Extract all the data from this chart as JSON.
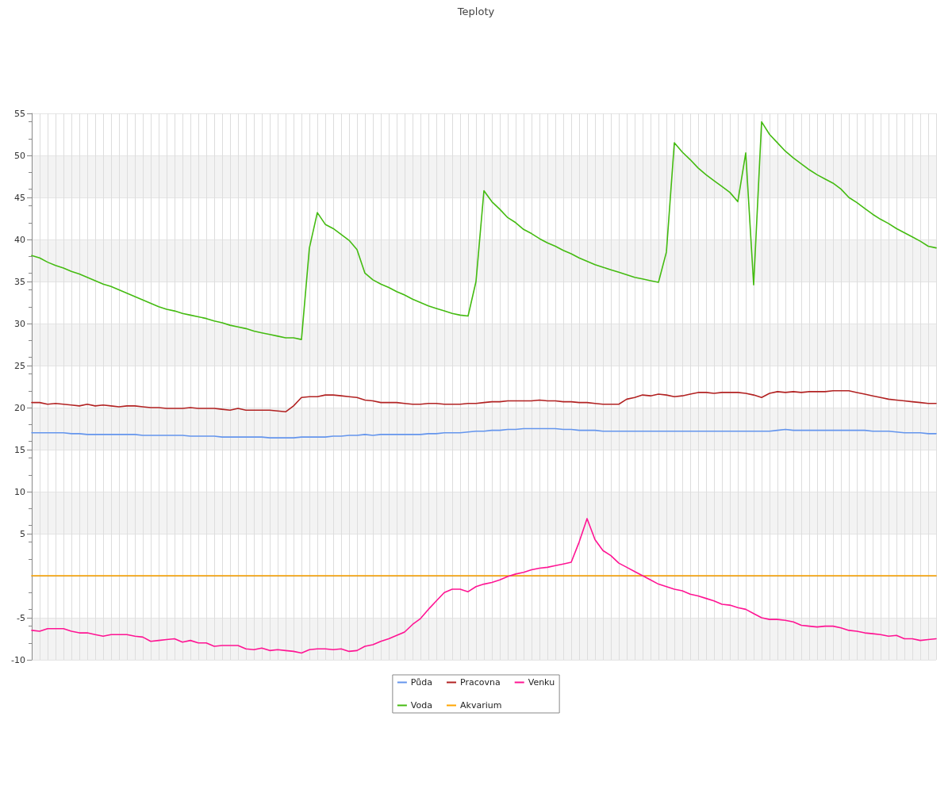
{
  "chart_data": {
    "type": "line",
    "title": "Teploty",
    "categories": [
      null,
      null,
      null,
      null,
      null,
      null,
      null,
      null,
      null,
      null,
      null,
      null,
      null,
      null,
      null,
      null,
      null,
      null,
      null,
      null,
      null,
      null,
      null,
      null,
      null,
      null,
      null,
      null,
      null,
      null,
      null,
      null,
      null,
      null,
      null,
      null,
      null,
      null,
      null,
      null,
      null,
      null,
      null,
      null,
      null,
      null,
      null,
      null,
      null,
      null,
      null,
      null,
      null,
      null,
      null,
      null,
      null,
      null,
      null,
      null,
      null,
      null,
      null,
      null,
      null,
      null,
      null,
      null,
      null,
      null,
      null,
      null,
      null,
      null,
      null,
      null,
      null,
      null,
      null,
      null,
      null,
      null,
      null,
      null,
      null,
      null,
      null,
      null,
      null,
      null,
      null,
      null,
      null,
      null,
      null,
      null,
      null,
      null,
      null,
      null,
      null,
      null,
      null,
      null,
      null,
      null,
      null,
      null,
      null,
      null,
      null,
      null,
      null,
      null,
      null
    ],
    "series": [
      {
        "name": "Půda",
        "color": "#6495ed",
        "values": [
          17.0,
          17.0,
          17.0,
          17.0,
          17.0,
          16.9,
          16.9,
          16.8,
          16.8,
          16.8,
          16.8,
          16.8,
          16.8,
          16.8,
          16.7,
          16.7,
          16.7,
          16.7,
          16.7,
          16.7,
          16.6,
          16.6,
          16.6,
          16.6,
          16.5,
          16.5,
          16.5,
          16.5,
          16.5,
          16.5,
          16.4,
          16.4,
          16.4,
          16.4,
          16.5,
          16.5,
          16.5,
          16.5,
          16.6,
          16.6,
          16.7,
          16.7,
          16.8,
          16.7,
          16.8,
          16.8,
          16.8,
          16.8,
          16.8,
          16.8,
          16.9,
          16.9,
          17.0,
          17.0,
          17.0,
          17.1,
          17.2,
          17.2,
          17.3,
          17.3,
          17.4,
          17.4,
          17.5,
          17.5,
          17.5,
          17.5,
          17.5,
          17.4,
          17.4,
          17.3,
          17.3,
          17.3,
          17.2,
          17.2,
          17.2,
          17.2,
          17.2,
          17.2,
          17.2,
          17.2,
          17.2,
          17.2,
          17.2,
          17.2,
          17.2,
          17.2,
          17.2,
          17.2,
          17.2,
          17.2,
          17.2,
          17.2,
          17.2,
          17.2,
          17.3,
          17.4,
          17.3,
          17.3,
          17.3,
          17.3,
          17.3,
          17.3,
          17.3,
          17.3,
          17.3,
          17.3,
          17.2,
          17.2,
          17.2,
          17.1,
          17.0,
          17.0,
          17.0,
          16.9,
          16.9
        ]
      },
      {
        "name": "Voda",
        "color": "#44bb11",
        "values": [
          38.1,
          37.8,
          37.3,
          36.9,
          36.6,
          36.2,
          35.9,
          35.5,
          35.1,
          34.7,
          34.4,
          34.0,
          33.6,
          33.2,
          32.8,
          32.4,
          32.0,
          31.7,
          31.5,
          31.2,
          31.0,
          30.8,
          30.6,
          30.3,
          30.1,
          29.8,
          29.6,
          29.4,
          29.1,
          28.9,
          28.7,
          28.5,
          28.3,
          28.3,
          28.1,
          39.0,
          43.2,
          41.8,
          41.3,
          40.6,
          39.9,
          38.8,
          36.0,
          35.2,
          34.7,
          34.3,
          33.8,
          33.4,
          32.9,
          32.5,
          32.1,
          31.8,
          31.5,
          31.2,
          31.0,
          30.9,
          35.0,
          45.8,
          44.5,
          43.6,
          42.6,
          42.0,
          41.2,
          40.7,
          40.1,
          39.6,
          39.2,
          38.7,
          38.3,
          37.8,
          37.4,
          37.0,
          36.7,
          36.4,
          36.1,
          35.8,
          35.5,
          35.3,
          35.1,
          34.9,
          38.5,
          51.5,
          50.4,
          49.5,
          48.5,
          47.7,
          47.0,
          46.3,
          45.6,
          44.5,
          50.3,
          34.6,
          54.0,
          52.5,
          51.5,
          50.5,
          49.7,
          49.0,
          48.3,
          47.7,
          47.2,
          46.7,
          46.0,
          45.0,
          44.4,
          43.7,
          43.0,
          42.4,
          41.9,
          41.3,
          40.8,
          40.3,
          39.8,
          39.2,
          39.0
        ]
      },
      {
        "name": "Pracovna",
        "color": "#b22222",
        "values": [
          20.6,
          20.6,
          20.4,
          20.5,
          20.4,
          20.3,
          20.2,
          20.4,
          20.2,
          20.3,
          20.2,
          20.1,
          20.2,
          20.2,
          20.1,
          20.0,
          20.0,
          19.9,
          19.9,
          19.9,
          20.0,
          19.9,
          19.9,
          19.9,
          19.8,
          19.7,
          19.9,
          19.7,
          19.7,
          19.7,
          19.7,
          19.6,
          19.5,
          20.2,
          21.2,
          21.3,
          21.3,
          21.5,
          21.5,
          21.4,
          21.3,
          21.2,
          20.9,
          20.8,
          20.6,
          20.6,
          20.6,
          20.5,
          20.4,
          20.4,
          20.5,
          20.5,
          20.4,
          20.4,
          20.4,
          20.5,
          20.5,
          20.6,
          20.7,
          20.7,
          20.8,
          20.8,
          20.8,
          20.8,
          20.9,
          20.8,
          20.8,
          20.7,
          20.7,
          20.6,
          20.6,
          20.5,
          20.4,
          20.4,
          20.4,
          21.0,
          21.2,
          21.5,
          21.4,
          21.6,
          21.5,
          21.3,
          21.4,
          21.6,
          21.8,
          21.8,
          21.7,
          21.8,
          21.8,
          21.8,
          21.7,
          21.5,
          21.2,
          21.7,
          21.9,
          21.8,
          21.9,
          21.8,
          21.9,
          21.9,
          21.9,
          22.0,
          22.0,
          22.0,
          21.8,
          21.6,
          21.4,
          21.2,
          21.0,
          20.9,
          20.8,
          20.7,
          20.6,
          20.5,
          20.5
        ]
      },
      {
        "name": "Akvarium",
        "color": "#ffa500",
        "values": [
          0,
          0,
          0,
          0,
          0,
          0,
          0,
          0,
          0,
          0,
          0,
          0,
          0,
          0,
          0,
          0,
          0,
          0,
          0,
          0,
          0,
          0,
          0,
          0,
          0,
          0,
          0,
          0,
          0,
          0,
          0,
          0,
          0,
          0,
          0,
          0,
          0,
          0,
          0,
          0,
          0,
          0,
          0,
          0,
          0,
          0,
          0,
          0,
          0,
          0,
          0,
          0,
          0,
          0,
          0,
          0,
          0,
          0,
          0,
          0,
          0,
          0,
          0,
          0,
          0,
          0,
          0,
          0,
          0,
          0,
          0,
          0,
          0,
          0,
          0,
          0,
          0,
          0,
          0,
          0,
          0,
          0,
          0,
          0,
          0,
          0,
          0,
          0,
          0,
          0,
          0,
          0,
          0,
          0,
          0,
          0,
          0,
          0,
          0,
          0,
          0,
          0,
          0,
          0,
          0,
          0,
          0,
          0,
          0,
          0,
          0,
          0,
          0,
          0,
          0
        ]
      },
      {
        "name": "Venku",
        "color": "#ff1493",
        "values": [
          -6.5,
          -6.6,
          -6.3,
          -6.3,
          -6.3,
          -6.6,
          -6.8,
          -6.8,
          -7.0,
          -7.2,
          -7.0,
          -7.0,
          -7.0,
          -7.2,
          -7.3,
          -7.8,
          -7.7,
          -7.6,
          -7.5,
          -7.9,
          -7.7,
          -8.0,
          -8.0,
          -8.4,
          -8.3,
          -8.3,
          -8.3,
          -8.7,
          -8.8,
          -8.6,
          -8.9,
          -8.8,
          -8.9,
          -9.0,
          -9.2,
          -8.8,
          -8.7,
          -8.7,
          -8.8,
          -8.7,
          -9.0,
          -8.9,
          -8.4,
          -8.2,
          -7.8,
          -7.5,
          -7.1,
          -6.7,
          -5.8,
          -5.1,
          -4.0,
          -3.0,
          -2.0,
          -1.6,
          -1.6,
          -1.9,
          -1.3,
          -1.0,
          -0.8,
          -0.5,
          -0.1,
          0.2,
          0.4,
          0.7,
          0.9,
          1.0,
          1.2,
          1.4,
          1.6,
          4.0,
          6.8,
          4.3,
          3.0,
          2.4,
          1.5,
          1.0,
          0.5,
          0.0,
          -0.5,
          -1.0,
          -1.3,
          -1.6,
          -1.8,
          -2.2,
          -2.4,
          -2.7,
          -3.0,
          -3.4,
          -3.5,
          -3.8,
          -4.0,
          -4.5,
          -5.0,
          -5.2,
          -5.2,
          -5.3,
          -5.5,
          -5.9,
          -6.0,
          -6.1,
          -6.0,
          -6.0,
          -6.2,
          -6.5,
          -6.6,
          -6.8,
          -6.9,
          -7.0,
          -7.2,
          -7.1,
          -7.5,
          -7.5,
          -7.7,
          -7.6,
          -7.5
        ]
      }
    ],
    "ylim": [
      -10,
      55
    ],
    "yticks": [
      -10,
      -5,
      5,
      10,
      15,
      20,
      25,
      30,
      35,
      40,
      45,
      50,
      55
    ],
    "grid": true,
    "legend": "bottom",
    "marker": "none",
    "line_style": "solid"
  }
}
